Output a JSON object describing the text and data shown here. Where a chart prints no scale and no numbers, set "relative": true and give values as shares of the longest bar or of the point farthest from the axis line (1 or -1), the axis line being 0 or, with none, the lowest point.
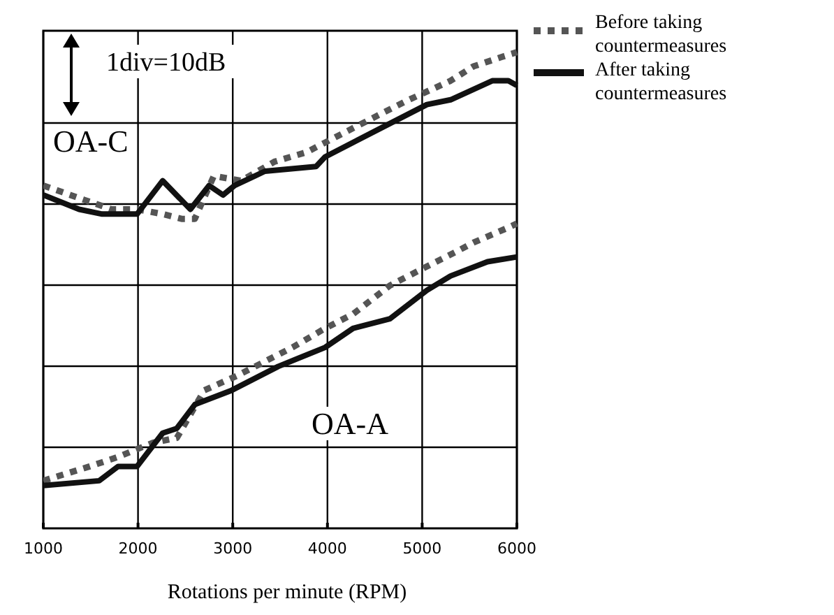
{
  "chart_data": {
    "type": "line",
    "relative": true,
    "xlabel": "Rotations per minute (RPM)",
    "xlim": [
      1000,
      6000
    ],
    "xticks": [
      1000,
      2000,
      3000,
      4000,
      5000,
      6000
    ],
    "tick_labels": "x",
    "grid": true,
    "legend": "top right",
    "annotations": [
      "1div=10dB",
      "OA-C",
      "OA-A"
    ],
    "series": [
      {
        "name": "Before taking countermeasures",
        "color": "#555555",
        "line_style": "dotted",
        "x": [
          1000,
          1430,
          1720,
          1990,
          2260,
          2460,
          2600,
          2800,
          3090,
          3440,
          3780,
          4070,
          4560,
          4860,
          5300,
          5540,
          5840,
          6000
        ],
        "values": [
          0.72,
          0.69,
          0.67,
          0.67,
          0.66,
          0.65,
          0.65,
          0.74,
          0.73,
          0.77,
          0.79,
          0.82,
          0.87,
          0.9,
          0.94,
          0.97,
          0.99,
          1
        ]
      },
      {
        "name": "After taking countermeasures",
        "color": "#111111",
        "line_style": "solid",
        "x": [
          1000,
          1378,
          1622,
          1990,
          2260,
          2553,
          2750,
          2897,
          3020,
          3340,
          3880,
          3975,
          4560,
          5050,
          5300,
          5740,
          5910,
          6000
        ],
        "values": [
          0.7,
          0.67,
          0.66,
          0.66,
          0.73,
          0.67,
          0.72,
          0.7,
          0.72,
          0.75,
          0.76,
          0.78,
          0.84,
          0.89,
          0.9,
          0.94,
          0.94,
          0.93
        ]
      },
      {
        "color": "#555555",
        "line_style": "dotted",
        "x": [
          1000,
          1490,
          1790,
          2160,
          2410,
          2700,
          3040,
          3630,
          3975,
          4270,
          4660,
          5050,
          5350,
          5540,
          5890,
          6000
        ],
        "values": [
          0.1,
          0.13,
          0.15,
          0.18,
          0.19,
          0.29,
          0.32,
          0.38,
          0.42,
          0.45,
          0.51,
          0.55,
          0.58,
          0.6,
          0.63,
          0.64
        ]
      },
      {
        "color": "#111111",
        "line_style": "solid",
        "x": [
          1000,
          1590,
          1790,
          1990,
          2260,
          2410,
          2600,
          2990,
          3480,
          3975,
          4270,
          4660,
          5050,
          5300,
          5690,
          6000
        ],
        "values": [
          0.09,
          0.1,
          0.13,
          0.13,
          0.2,
          0.21,
          0.26,
          0.29,
          0.34,
          0.38,
          0.42,
          0.44,
          0.5,
          0.53,
          0.56,
          0.57
        ]
      }
    ]
  }
}
